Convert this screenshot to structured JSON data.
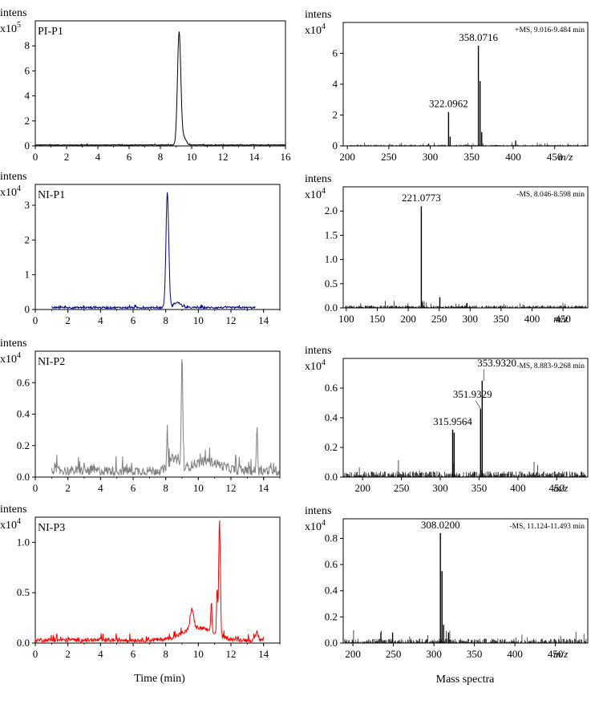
{
  "figure": {
    "xlabel_left": "Time (min)",
    "xlabel_right": "Mass spectra"
  },
  "chart_data": [
    {
      "type": "line",
      "panel": "chromatogram",
      "label": "PI-P1",
      "ylabel": "intens",
      "yexp_base": "x10",
      "yexp_power": "5",
      "color": "#000000",
      "xlim": [
        0,
        16
      ],
      "ylim": [
        0,
        10
      ],
      "xticks": [
        0,
        2,
        4,
        6,
        8,
        10,
        12,
        14,
        16
      ],
      "yticks": [
        0,
        2,
        4,
        6,
        8
      ],
      "baseline": 0.05,
      "noise": 0.05,
      "noise_start": 0,
      "noise_end": 16,
      "peaks": [
        {
          "x": 9.2,
          "h": 9.0,
          "w": 0.15
        },
        {
          "x": 9.5,
          "h": 0.6,
          "w": 0.2
        }
      ]
    },
    {
      "type": "bar",
      "panel": "spectrum",
      "info": "+MS, 9.016-9.484 min",
      "ylabel": "intens",
      "yexp_base": "x10",
      "yexp_power": "4",
      "color": "#000000",
      "xlim": [
        195,
        490
      ],
      "ylim": [
        0,
        8
      ],
      "xticks": [
        200,
        250,
        300,
        350,
        400,
        450
      ],
      "xunit": "m/z",
      "yticks": [
        0,
        2,
        4,
        6
      ],
      "noise": 0.08,
      "noise_start": 197,
      "noise_end": 488,
      "peaks": [
        {
          "mz": 322.0962,
          "i": 2.2,
          "label": "322.0962"
        },
        {
          "mz": 358.0716,
          "i": 6.5,
          "label": "358.0716"
        },
        {
          "mz": 360.1,
          "i": 4.2
        },
        {
          "mz": 362.0,
          "i": 0.9
        },
        {
          "mz": 324.0,
          "i": 0.6
        },
        {
          "mz": 403.0,
          "i": 0.35
        },
        {
          "mz": 298.0,
          "i": 0.15
        }
      ]
    },
    {
      "type": "line",
      "panel": "chromatogram",
      "label": "NI-P1",
      "ylabel": "intens",
      "yexp_base": "x10",
      "yexp_power": "4",
      "color": "#00008b",
      "xlim": [
        0,
        15
      ],
      "ylim": [
        0,
        3.6
      ],
      "xticks": [
        0,
        2,
        4,
        6,
        8,
        10,
        12,
        14
      ],
      "yticks": [
        0,
        1,
        2,
        3
      ],
      "baseline": 0.03,
      "noise": 0.05,
      "noise_start": 1,
      "noise_end": 13.5,
      "peaks": [
        {
          "x": 8.1,
          "h": 3.3,
          "w": 0.12
        },
        {
          "x": 8.7,
          "h": 0.15,
          "w": 0.3
        }
      ]
    },
    {
      "type": "bar",
      "panel": "spectrum",
      "info": "-MS, 8.046-8.598 min",
      "ylabel": "intens",
      "yexp_base": "x10",
      "yexp_power": "4",
      "color": "#000000",
      "xlim": [
        95,
        490
      ],
      "ylim": [
        0,
        2.5
      ],
      "xticks": [
        100,
        150,
        200,
        250,
        300,
        350,
        400,
        450
      ],
      "xunit": "m/z",
      "yticks": [
        "0.0",
        "0.5",
        "1.0",
        "1.5",
        "2.0"
      ],
      "noise": 0.05,
      "noise_start": 98,
      "noise_end": 488,
      "peaks": [
        {
          "mz": 221.0773,
          "i": 2.1,
          "label": "221.0773"
        },
        {
          "mz": 223.0,
          "i": 0.12
        },
        {
          "mz": 251.0,
          "i": 0.22
        },
        {
          "mz": 295.0,
          "i": 0.1
        }
      ]
    },
    {
      "type": "line",
      "panel": "chromatogram",
      "label": "NI-P2",
      "ylabel": "intens",
      "yexp_base": "x10",
      "yexp_power": "4",
      "color": "#808080",
      "xlim": [
        0,
        15
      ],
      "ylim": [
        0,
        0.8
      ],
      "xticks": [
        0,
        2,
        4,
        6,
        8,
        10,
        12,
        14
      ],
      "yticks": [
        "0.0",
        "0.2",
        "0.4",
        "0.6"
      ],
      "baseline": 0.01,
      "noise": 0.06,
      "noise_start": 1,
      "noise_end": 15,
      "peaks": [
        {
          "x": 1.2,
          "h": 0.07,
          "w": 0.05
        },
        {
          "x": 8.1,
          "h": 0.18,
          "w": 0.05
        },
        {
          "x": 9.0,
          "h": 0.72,
          "w": 0.06
        },
        {
          "x": 13.6,
          "h": 0.3,
          "w": 0.05
        },
        {
          "x": 8.5,
          "h": 0.08,
          "w": 0.4
        },
        {
          "x": 10.5,
          "h": 0.06,
          "w": 1.2
        }
      ]
    },
    {
      "type": "bar",
      "panel": "spectrum",
      "info": "-MS, 8.883-9.268 min",
      "ylabel": "intens",
      "yexp_base": "x10",
      "yexp_power": "4",
      "color": "#000000",
      "xlim": [
        175,
        490
      ],
      "ylim": [
        0,
        0.8
      ],
      "xticks": [
        200,
        250,
        300,
        350,
        400,
        450
      ],
      "xunit": "m/z",
      "yticks": [
        "0.0",
        "0.2",
        "0.4",
        "0.6"
      ],
      "noise": 0.04,
      "noise_start": 176,
      "noise_end": 489,
      "peaks": [
        {
          "mz": 315.9564,
          "i": 0.32,
          "label": "315.9564"
        },
        {
          "mz": 317.9,
          "i": 0.3
        },
        {
          "mz": 351.9329,
          "i": 0.46,
          "label": "351.9329"
        },
        {
          "mz": 353.932,
          "i": 0.65,
          "label": "353.9320"
        }
      ]
    },
    {
      "type": "line",
      "panel": "chromatogram",
      "label": "NI-P3",
      "ylabel": "intens",
      "yexp_base": "x10",
      "yexp_power": "4",
      "color": "#ff0000",
      "xlim": [
        0,
        15
      ],
      "ylim": [
        0,
        1.25
      ],
      "xticks": [
        0,
        2,
        4,
        6,
        8,
        10,
        12,
        14
      ],
      "yticks": [
        "0.0",
        "0.5",
        "1.0"
      ],
      "baseline": 0.01,
      "noise": 0.04,
      "noise_start": 0,
      "noise_end": 14,
      "peaks": [
        {
          "x": 11.3,
          "h": 1.15,
          "w": 0.07
        },
        {
          "x": 11.15,
          "h": 0.45,
          "w": 0.05
        },
        {
          "x": 10.8,
          "h": 0.3,
          "w": 0.05
        },
        {
          "x": 9.6,
          "h": 0.2,
          "w": 0.15
        },
        {
          "x": 10.0,
          "h": 0.12,
          "w": 1.3
        },
        {
          "x": 13.6,
          "h": 0.08,
          "w": 0.1
        }
      ]
    },
    {
      "type": "bar",
      "panel": "spectrum",
      "info": "-MS, 11.124-11.493 min",
      "ylabel": "intens",
      "yexp_base": "x10",
      "yexp_power": "4",
      "color": "#000000",
      "xlim": [
        188,
        490
      ],
      "ylim": [
        0,
        0.95
      ],
      "xticks": [
        200,
        250,
        300,
        350,
        400,
        450
      ],
      "xunit": "m/z",
      "yticks": [
        "0.0",
        "0.2",
        "0.4",
        "0.6",
        "0.8"
      ],
      "noise": 0.035,
      "noise_start": 190,
      "noise_end": 488,
      "peaks": [
        {
          "mz": 308.02,
          "i": 0.84,
          "label": "308.0200"
        },
        {
          "mz": 310.0,
          "i": 0.55
        },
        {
          "mz": 312.0,
          "i": 0.14
        },
        {
          "mz": 318.0,
          "i": 0.08
        },
        {
          "mz": 249.0,
          "i": 0.08
        }
      ]
    }
  ]
}
